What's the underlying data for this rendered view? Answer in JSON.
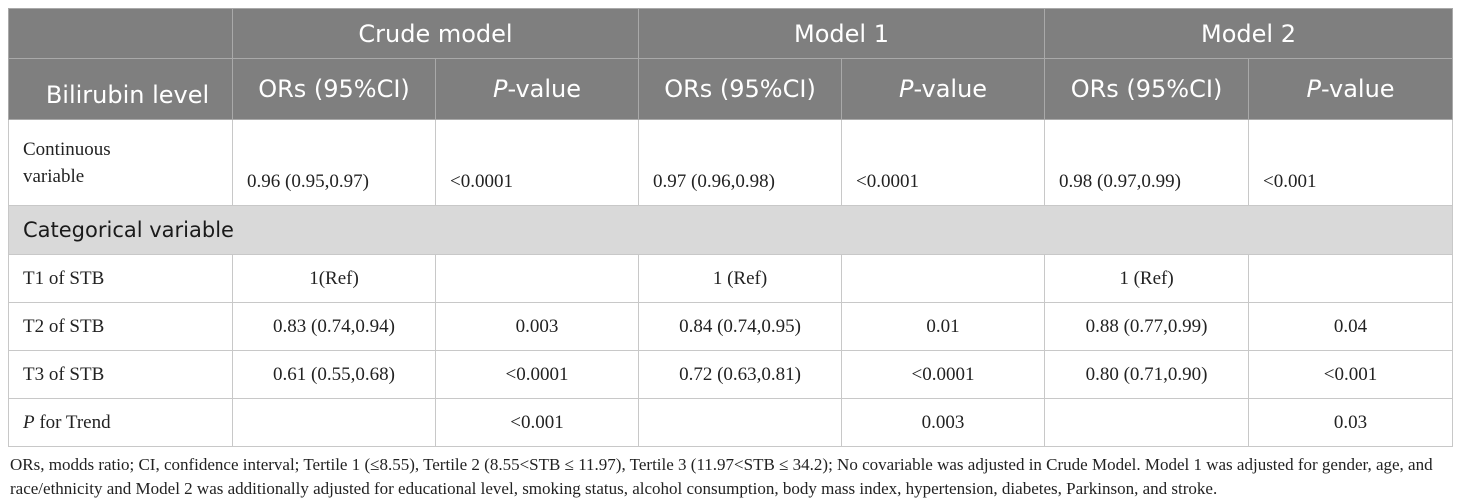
{
  "header": {
    "row_label": "Bilirubin level",
    "groups": [
      "Crude model",
      "Model 1",
      "Model 2"
    ],
    "or_label": "ORs (95%CI)",
    "p_prefix": "P",
    "p_suffix": "-value"
  },
  "rows": {
    "continuous": {
      "label": "Continuous variable",
      "cells": [
        "0.96 (0.95,0.97)",
        "<0.0001",
        "0.97 (0.96,0.98)",
        "<0.0001",
        "0.98 (0.97,0.99)",
        "<0.001"
      ]
    },
    "categorical_header": "Categorical variable",
    "t1": {
      "label": "T1 of STB",
      "cells": [
        "1(Ref)",
        "",
        "1 (Ref)",
        "",
        "1 (Ref)",
        ""
      ]
    },
    "t2": {
      "label": "T2 of STB",
      "cells": [
        "0.83 (0.74,0.94)",
        "0.003",
        "0.84 (0.74,0.95)",
        "0.01",
        "0.88 (0.77,0.99)",
        "0.04"
      ]
    },
    "t3": {
      "label": "T3 of STB",
      "cells": [
        "0.61 (0.55,0.68)",
        "<0.0001",
        "0.72 (0.63,0.81)",
        "<0.0001",
        "0.80 (0.71,0.90)",
        "<0.001"
      ]
    },
    "trend": {
      "label_prefix": "P",
      "label_suffix": " for Trend",
      "cells": [
        "",
        "<0.001",
        "",
        "0.003",
        "",
        "0.03"
      ]
    }
  },
  "footnote": "ORs, modds ratio; CI, confidence interval; Tertile 1 (≤8.55), Tertile 2 (8.55<STB ≤ 11.97), Tertile 3 (11.97<STB ≤ 34.2); No covariable was adjusted in Crude Model. Model 1 was adjusted for gender, age, and race/ethnicity and Model 2 was additionally adjusted for educational level, smoking status, alcohol consumption, body mass index, hypertension, diabetes, Parkinson, and stroke.",
  "colors": {
    "header_bg": "#7f7f7f",
    "category_bg": "#d9d9d9",
    "border": "#c8c8c8"
  }
}
